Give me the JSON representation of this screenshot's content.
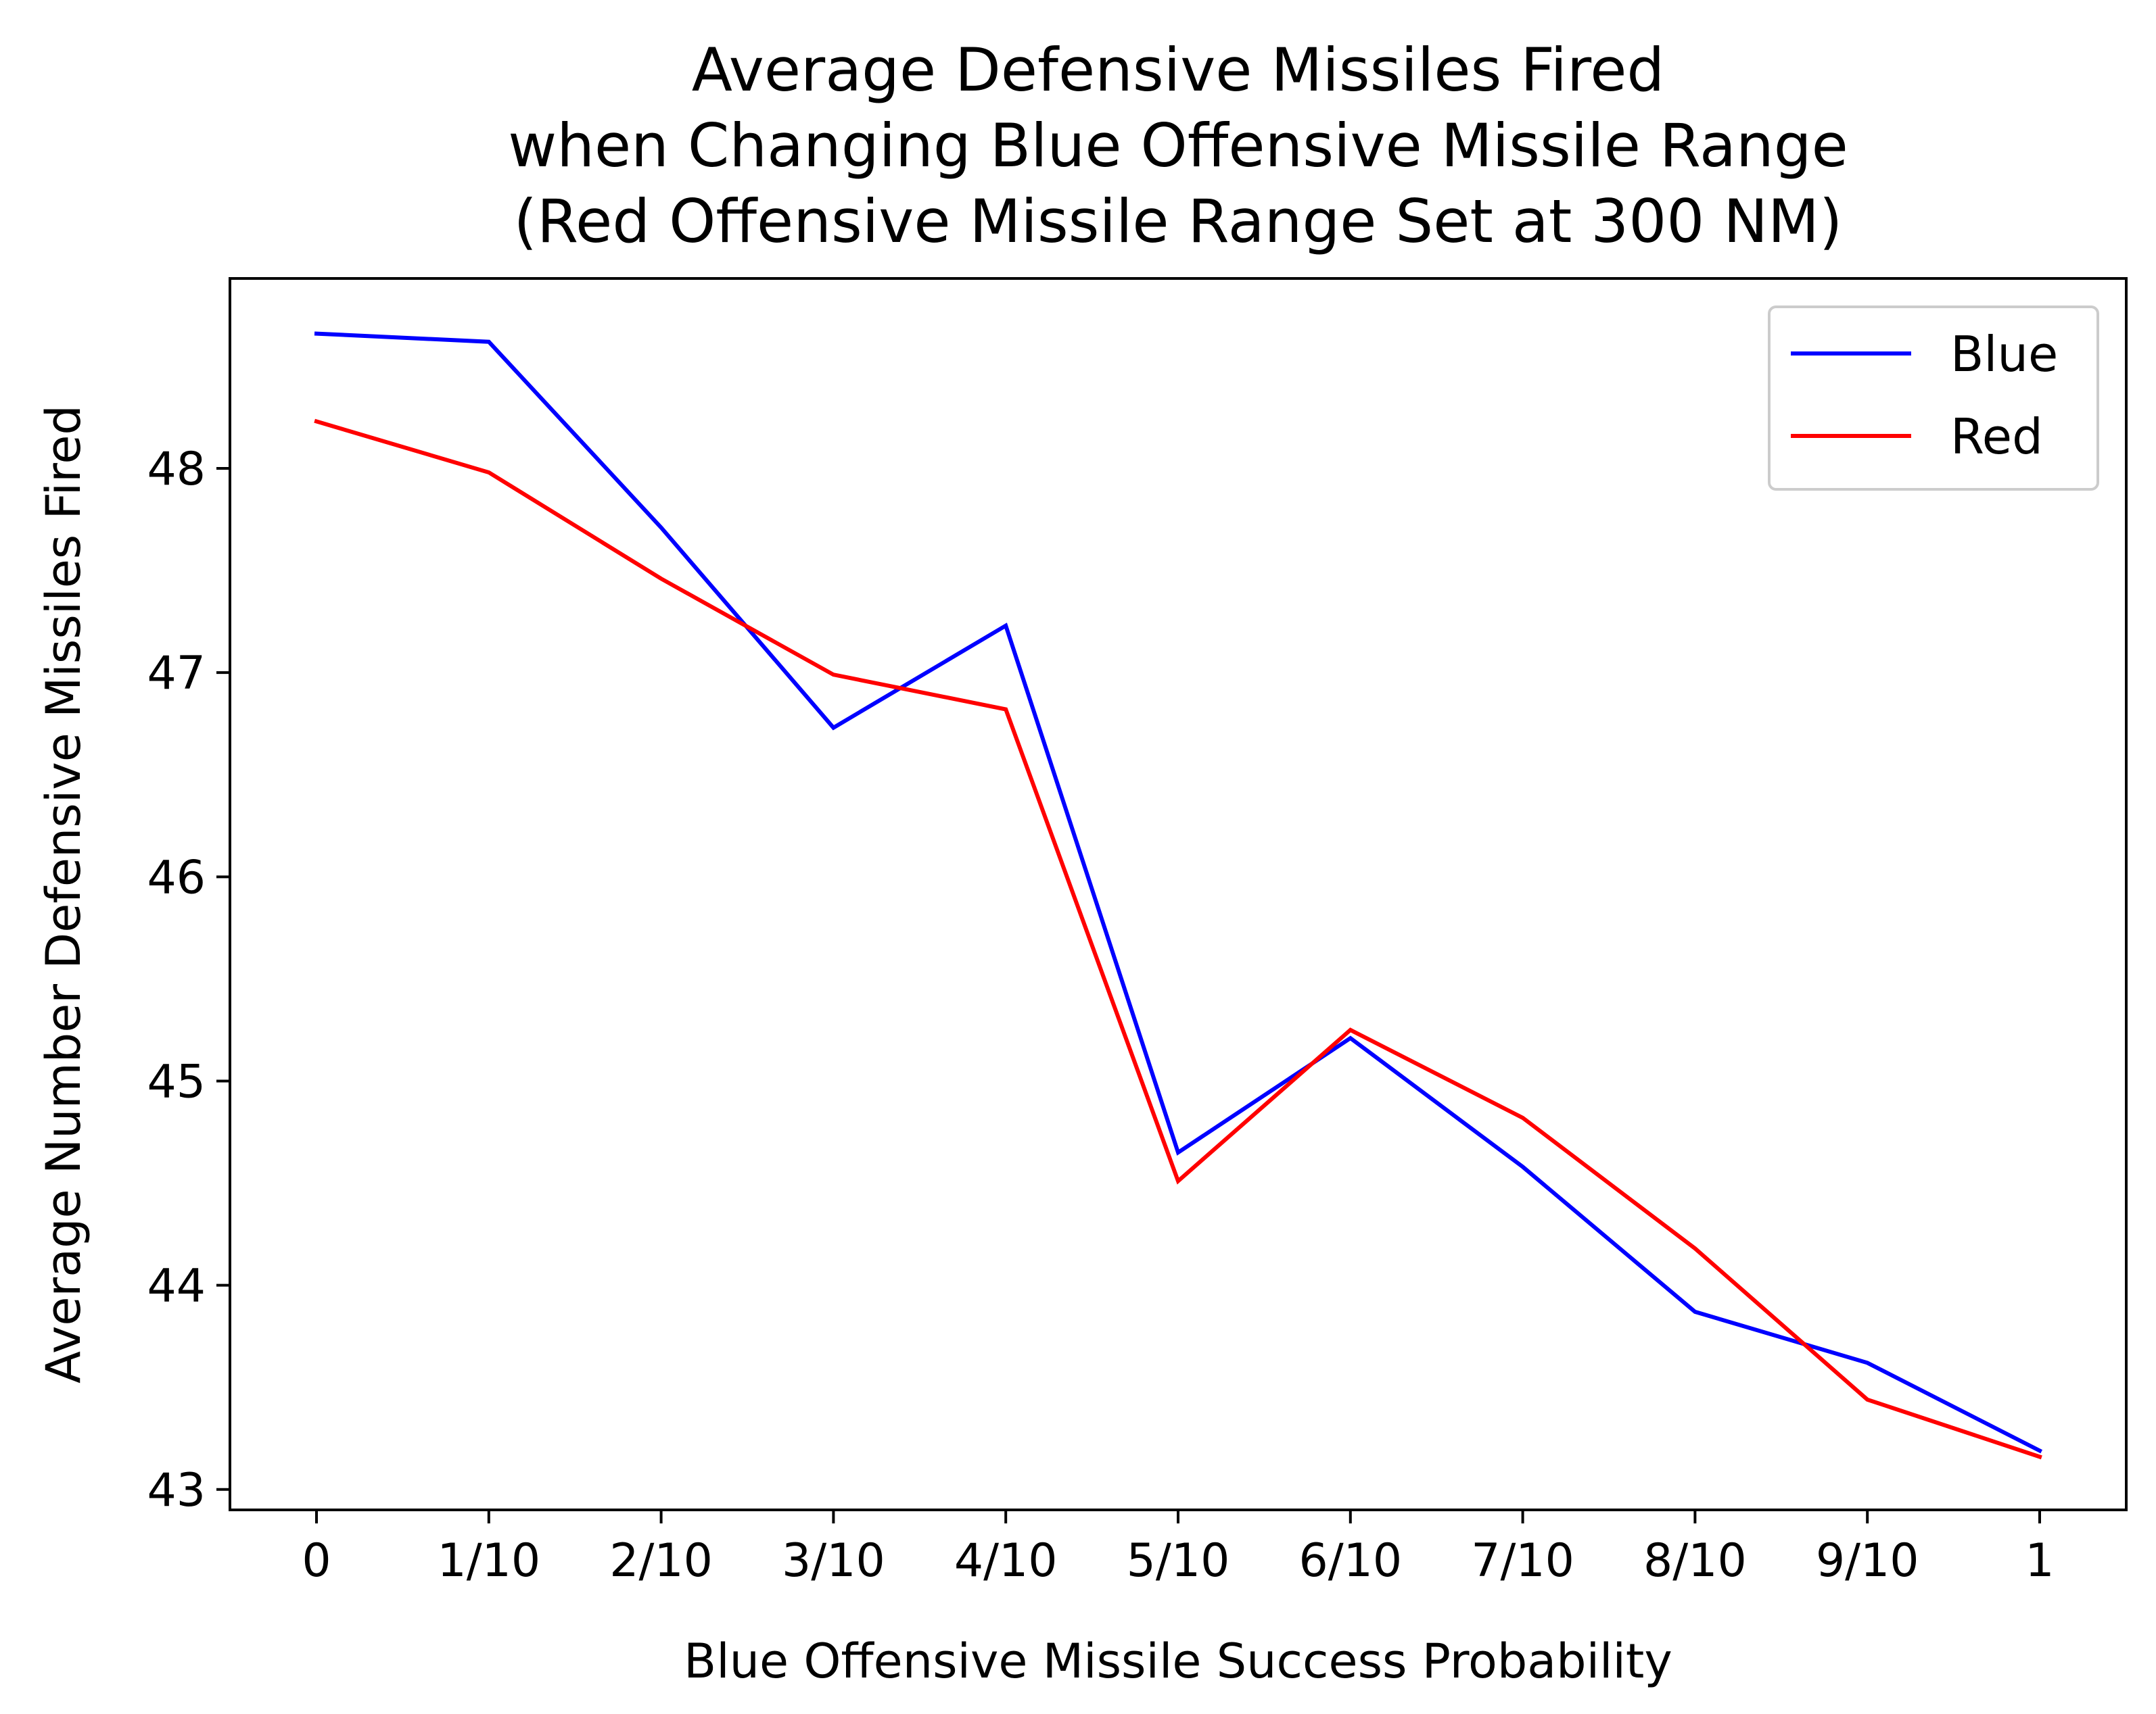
{
  "chart_data": {
    "type": "line",
    "title": [
      "Average Defensive Missiles Fired",
      "when Changing Blue Offensive Missile Range",
      "(Red Offensive Missile Range Set at 300 NM)"
    ],
    "xlabel": "Blue Offensive Missile Success Probability",
    "ylabel": "Average Number Defensive Missiles Fired",
    "categories": [
      "0",
      "1/10",
      "2/10",
      "3/10",
      "4/10",
      "5/10",
      "6/10",
      "7/10",
      "8/10",
      "9/10",
      "1"
    ],
    "yticks": [
      43,
      44,
      45,
      46,
      47,
      48
    ],
    "ylim": [
      42.9,
      48.93
    ],
    "grid": false,
    "legend_position": "top-right",
    "series": [
      {
        "name": "Blue",
        "color": "#0000ff",
        "values": [
          48.66,
          48.62,
          47.71,
          46.73,
          47.23,
          44.65,
          45.21,
          44.58,
          43.87,
          43.62,
          43.19
        ]
      },
      {
        "name": "Red",
        "color": "#ff0000",
        "values": [
          48.23,
          47.98,
          47.46,
          46.99,
          46.82,
          44.51,
          45.25,
          44.82,
          44.18,
          43.44,
          43.16
        ]
      }
    ]
  }
}
